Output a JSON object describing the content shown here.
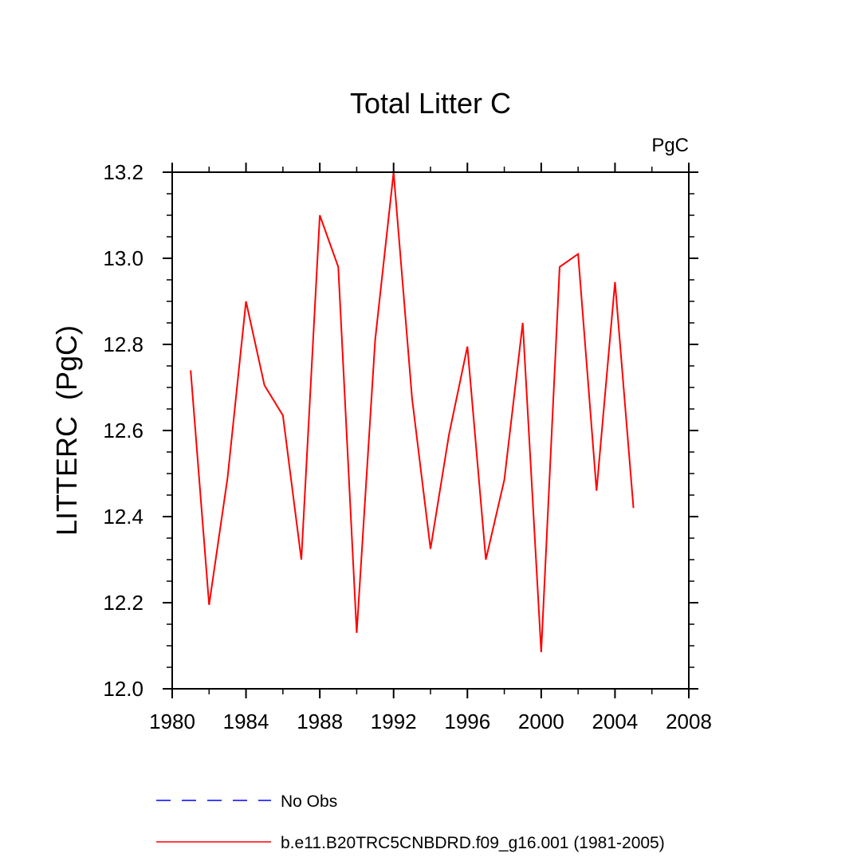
{
  "chart_data": {
    "type": "line",
    "title": "Total Litter C",
    "units": "PgC",
    "ylabel": "LITTERC  (PgC)",
    "xlabel": "",
    "xlim": [
      1980,
      2008
    ],
    "ylim": [
      12.0,
      13.2
    ],
    "x_ticks": [
      1980,
      1984,
      1988,
      1992,
      1996,
      2000,
      2004,
      2008
    ],
    "y_ticks": [
      12.0,
      12.2,
      12.4,
      12.6,
      12.8,
      13.0,
      13.2
    ],
    "x_tick_labels": [
      "1980",
      "1984",
      "1988",
      "1992",
      "1996",
      "2000",
      "2004",
      "2008"
    ],
    "y_tick_labels": [
      "12.0",
      "12.2",
      "12.4",
      "12.6",
      "12.8",
      "13.0",
      "13.2"
    ],
    "x_minor_step": 2,
    "y_minor_step": 0.05,
    "grid": false,
    "legend_position": "bottom",
    "series": [
      {
        "name": "b.e11.B20TRC5CNBDRD.f09_g16.001 (1981-2005)",
        "color": "#ff0000",
        "dash": "solid",
        "x": [
          1981,
          1982,
          1983,
          1984,
          1985,
          1986,
          1987,
          1988,
          1989,
          1990,
          1991,
          1992,
          1993,
          1994,
          1995,
          1996,
          1997,
          1998,
          1999,
          2000,
          2001,
          2002,
          2003,
          2004,
          2005
        ],
        "y": [
          12.74,
          12.195,
          12.49,
          12.9,
          12.705,
          12.635,
          12.3,
          13.1,
          12.98,
          12.13,
          12.81,
          13.2,
          12.675,
          12.325,
          12.59,
          12.795,
          12.3,
          12.485,
          12.85,
          12.085,
          12.98,
          13.01,
          12.46,
          12.945,
          12.42
        ]
      }
    ],
    "legend": [
      {
        "label": "No Obs",
        "color": "#0000ff",
        "dash": "dashed"
      },
      {
        "label": "b.e11.B20TRC5CNBDRD.f09_g16.001 (1981-2005)",
        "color": "#ff0000",
        "dash": "solid"
      }
    ]
  }
}
